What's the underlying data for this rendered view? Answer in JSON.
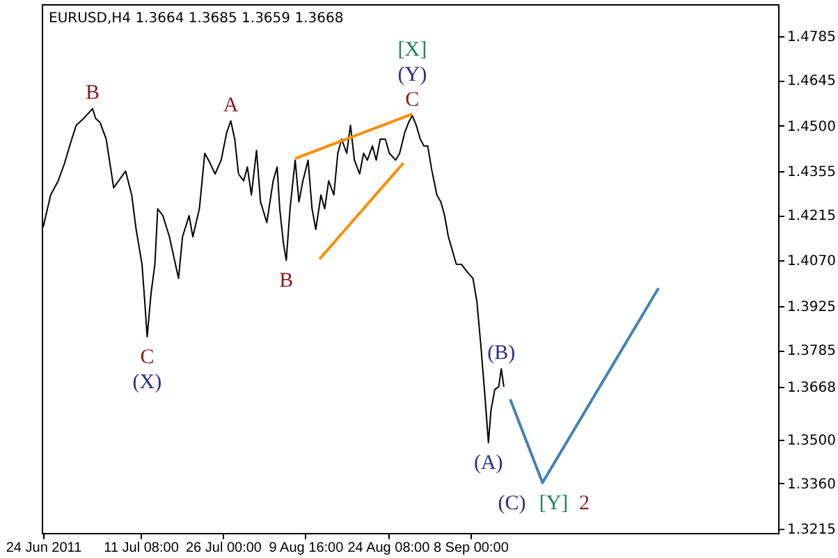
{
  "chart_data": {
    "type": "line",
    "title": "EURUSD,H4  1.3664 1.3685 1.3659 1.3668",
    "xlim": [
      "2011-06-23T18:00",
      "2011-11-01T18:00"
    ],
    "xticks": [
      {
        "value": "2011-06-24T00:00",
        "label": "24 Jun 2011"
      },
      {
        "value": "2011-07-11T08:00",
        "label": "11 Jul 08:00"
      },
      {
        "value": "2011-07-26T00:00",
        "label": "26 Jul 00:00"
      },
      {
        "value": "2011-08-09T16:00",
        "label": "9 Aug 16:00"
      },
      {
        "value": "2011-08-24T08:00",
        "label": "24 Aug 08:00"
      },
      {
        "value": "2011-09-08T00:00",
        "label": "8 Sep 00:00"
      }
    ],
    "ylim": [
      1.3202,
      1.4887
    ],
    "yticks": [
      1.3215,
      {
        "value": 1.336,
        "label": "1.3360"
      },
      {
        "value": 1.35,
        "label": "1.3500"
      },
      1.3668,
      1.3785,
      1.3925,
      {
        "value": 1.407,
        "label": "1.4070"
      },
      1.4215,
      1.4355,
      {
        "value": 1.45,
        "label": "1.4500"
      },
      1.4645,
      1.4785
    ],
    "grid": false,
    "line_style": "solid",
    "series": [
      {
        "color": "#000000",
        "x": [
          "2011-06-24T00:00",
          "2011-06-25T08:00",
          "2011-06-26T16:00",
          "2011-06-27T18:00",
          "2011-06-29T02:00",
          "2011-06-29T21:00",
          "2011-07-01T05:00",
          "2011-07-02T19:00",
          "2011-07-03T08:00",
          "2011-07-04T03:00",
          "2011-07-05T05:00",
          "2011-07-06T13:00",
          "2011-07-08T16:00",
          "2011-07-09T18:00",
          "2011-07-10T13:00",
          "2011-07-11T14:00",
          "2011-07-12T01:00",
          "2011-07-12T12:00",
          "2011-07-13T05:00",
          "2011-07-13T21:00",
          "2011-07-14T09:00",
          "2011-07-15T07:00",
          "2011-07-16T11:00",
          "2011-07-18T02:00",
          "2011-07-18T19:00",
          "2011-07-19T23:00",
          "2011-07-20T15:00",
          "2011-07-21T19:00",
          "2011-07-22T18:00",
          "2011-07-23T10:00",
          "2011-07-24T14:00",
          "2011-07-25T16:00",
          "2011-07-26T16:00",
          "2011-07-27T09:00",
          "2011-07-28T02:00",
          "2011-07-28T18:00",
          "2011-07-29T16:00",
          "2011-07-30T08:00",
          "2011-07-31T01:00",
          "2011-07-31T23:00",
          "2011-08-01T16:00",
          "2011-08-02T19:00",
          "2011-08-03T22:00",
          "2011-08-04T15:00",
          "2011-08-05T02:00",
          "2011-08-05T18:00",
          "2011-08-06T06:00",
          "2011-08-06T22:00",
          "2011-08-07T20:00",
          "2011-08-08T12:00",
          "2011-08-09T05:00",
          "2011-08-10T03:00",
          "2011-08-10T20:00",
          "2011-08-11T12:00",
          "2011-08-12T10:00",
          "2011-08-13T02:00",
          "2011-08-13T19:00",
          "2011-08-14T17:00",
          "2011-08-15T10:00",
          "2011-08-16T02:00",
          "2011-08-17T00:00",
          "2011-08-17T16:00",
          "2011-08-18T09:00",
          "2011-08-19T07:00",
          "2011-08-20T00:00",
          "2011-08-20T16:00",
          "2011-08-21T14:00",
          "2011-08-22T06:00",
          "2011-08-22T23:00",
          "2011-08-23T21:00",
          "2011-08-24T14:00",
          "2011-08-25T17:00",
          "2011-08-26T10:00",
          "2011-08-27T08:00",
          "2011-08-28T00:00",
          "2011-08-28T16:00",
          "2011-08-29T09:00",
          "2011-08-30T02:00",
          "2011-08-30T18:00",
          "2011-08-31T10:00",
          "2011-09-01T03:00",
          "2011-09-02T01:00",
          "2011-09-02T18:00",
          "2011-09-03T10:00",
          "2011-09-04T02:00",
          "2011-09-04T19:00",
          "2011-09-05T12:00",
          "2011-09-06T10:00",
          "2011-09-07T08:00",
          "2011-09-08T11:00",
          "2011-09-09T04:00",
          "2011-09-09T20:00",
          "2011-09-10T12:00",
          "2011-09-11T05:00",
          "2011-09-11T16:00",
          "2011-09-12T08:00",
          "2011-09-13T01:00",
          "2011-09-13T12:00",
          "2011-09-13T23:00"
        ],
        "values": [
          1.4177,
          1.4279,
          1.4324,
          1.4377,
          1.4457,
          1.4501,
          1.4523,
          1.4554,
          1.4523,
          1.451,
          1.4457,
          1.4302,
          1.4355,
          1.4279,
          1.4169,
          1.4058,
          1.3947,
          1.3827,
          1.3969,
          1.4058,
          1.4235,
          1.4213,
          1.4146,
          1.4013,
          1.4146,
          1.4213,
          1.4146,
          1.4235,
          1.4412,
          1.439,
          1.4346,
          1.439,
          1.4479,
          1.4515,
          1.4457,
          1.4346,
          1.4324,
          1.4368,
          1.4279,
          1.4421,
          1.4257,
          1.4191,
          1.4324,
          1.4368,
          1.4235,
          1.4124,
          1.4071,
          1.4235,
          1.439,
          1.4257,
          1.4324,
          1.439,
          1.4235,
          1.4169,
          1.4279,
          1.4235,
          1.4324,
          1.4279,
          1.4412,
          1.4457,
          1.4412,
          1.4501,
          1.439,
          1.4346,
          1.4412,
          1.439,
          1.4435,
          1.439,
          1.4457,
          1.4457,
          1.4412,
          1.439,
          1.4412,
          1.4479,
          1.451,
          1.4532,
          1.4501,
          1.4457,
          1.4435,
          1.4435,
          1.4359,
          1.4279,
          1.4257,
          1.4213,
          1.4146,
          1.4102,
          1.4058,
          1.4058,
          1.4036,
          1.4013,
          1.3938,
          1.3805,
          1.3659,
          1.349,
          1.3592,
          1.3659,
          1.3668,
          1.3725,
          1.3668
        ]
      },
      {
        "type": "line",
        "color": "#ff8c00",
        "x": [
          "2011-08-07T20:00",
          "2011-08-28T16:00"
        ],
        "values": [
          1.4395,
          1.4537
        ]
      },
      {
        "type": "line",
        "color": "#ff8c00",
        "x": [
          "2011-08-12T04:00",
          "2011-08-27T02:00"
        ],
        "values": [
          1.4075,
          1.4381
        ]
      },
      {
        "type": "line",
        "color": "#4682b4",
        "x": [
          "2011-09-15T02:00",
          "2011-09-20T20:00",
          "2011-10-11T11:00"
        ],
        "values": [
          1.3628,
          1.3362,
          1.3982
        ]
      }
    ],
    "annotations": [
      {
        "text": "B",
        "x": "2011-07-02T19:00",
        "y": 1.4554
      },
      {
        "text": "A",
        "x": "2011-07-27T09:00",
        "y": 1.4515
      },
      {
        "text": "[X]",
        "x": "2011-08-28T16:00",
        "y": 1.4532
      },
      {
        "text": "(Y)",
        "x": "2011-08-28T16:00",
        "y": 1.4532
      },
      {
        "text": "C",
        "x": "2011-08-28T16:00",
        "y": 1.4532
      },
      {
        "text": "C",
        "x": "2011-07-12T12:00",
        "y": 1.3827
      },
      {
        "text": "(X)",
        "x": "2011-07-12T12:00",
        "y": 1.3827
      },
      {
        "text": "B",
        "x": "2011-08-06T06:00",
        "y": 1.4071
      },
      {
        "text": "(B)",
        "x": "2011-09-13T12:00",
        "y": 1.3725
      },
      {
        "text": "(A)",
        "x": "2011-09-11T05:00",
        "y": 1.349
      },
      {
        "text": "(C) [Y] 2",
        "x": "2011-09-20T20:00",
        "y": 1.3362
      }
    ]
  }
}
